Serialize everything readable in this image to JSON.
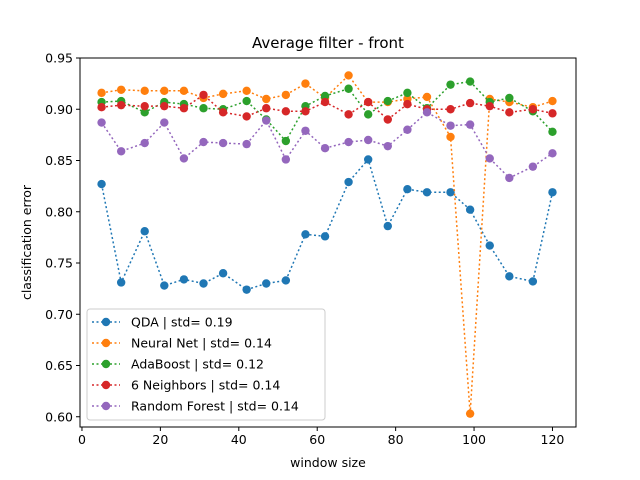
{
  "chart_data": {
    "type": "line",
    "title": "Average filter - front",
    "xlabel": "window size",
    "ylabel": "classification error",
    "xlim": [
      -0.5,
      126
    ],
    "ylim": [
      0.59,
      0.95
    ],
    "xticks": [
      0,
      20,
      40,
      60,
      80,
      100,
      120
    ],
    "xtick_labels": [
      "0",
      "20",
      "40",
      "60",
      "80",
      "100",
      "120"
    ],
    "yticks": [
      0.6,
      0.65,
      0.7,
      0.75,
      0.8,
      0.85,
      0.9,
      0.95
    ],
    "ytick_labels": [
      "0.60",
      "0.65",
      "0.70",
      "0.75",
      "0.80",
      "0.85",
      "0.90",
      "0.95"
    ],
    "grid": false,
    "legend_position": "lower-left",
    "x": [
      5,
      10,
      16,
      21,
      26,
      31,
      36,
      42,
      47,
      52,
      57,
      62,
      68,
      73,
      78,
      83,
      88,
      94,
      99,
      104,
      109,
      115,
      120
    ],
    "series": [
      {
        "name": "QDA | std= 0.19",
        "color": "#1f77b4",
        "values": [
          0.827,
          0.731,
          0.781,
          0.728,
          0.734,
          0.73,
          0.74,
          0.724,
          0.73,
          0.733,
          0.778,
          0.776,
          0.829,
          0.851,
          0.786,
          0.822,
          0.819,
          0.819,
          0.802,
          0.767,
          0.737,
          0.732,
          0.819
        ]
      },
      {
        "name": "Neural Net | std= 0.14",
        "color": "#ff7f0e",
        "values": [
          0.916,
          0.919,
          0.918,
          0.918,
          0.918,
          0.911,
          0.915,
          0.918,
          0.91,
          0.914,
          0.925,
          0.911,
          0.933,
          0.907,
          0.907,
          0.91,
          0.912,
          0.873,
          0.603,
          0.91,
          0.907,
          0.902,
          0.908
        ]
      },
      {
        "name": "AdaBoost | std= 0.12",
        "color": "#2ca02c",
        "values": [
          0.907,
          0.908,
          0.897,
          0.907,
          0.905,
          0.901,
          0.9,
          0.908,
          0.89,
          0.869,
          0.903,
          0.913,
          0.92,
          0.895,
          0.908,
          0.916,
          0.901,
          0.924,
          0.927,
          0.907,
          0.911,
          0.898,
          0.878
        ]
      },
      {
        "name": "6 Neighbors | std= 0.14",
        "color": "#d62728",
        "values": [
          0.902,
          0.904,
          0.903,
          0.903,
          0.901,
          0.914,
          0.897,
          0.893,
          0.901,
          0.898,
          0.898,
          0.907,
          0.895,
          0.907,
          0.89,
          0.905,
          0.9,
          0.9,
          0.906,
          0.903,
          0.897,
          0.9,
          0.896
        ]
      },
      {
        "name": "Random Forest | std= 0.14",
        "color": "#9467bd",
        "values": [
          0.887,
          0.859,
          0.867,
          0.887,
          0.852,
          0.868,
          0.867,
          0.866,
          0.889,
          0.851,
          0.879,
          0.862,
          0.868,
          0.87,
          0.864,
          0.88,
          0.897,
          0.884,
          0.885,
          0.852,
          0.833,
          0.844,
          0.857
        ]
      }
    ]
  }
}
